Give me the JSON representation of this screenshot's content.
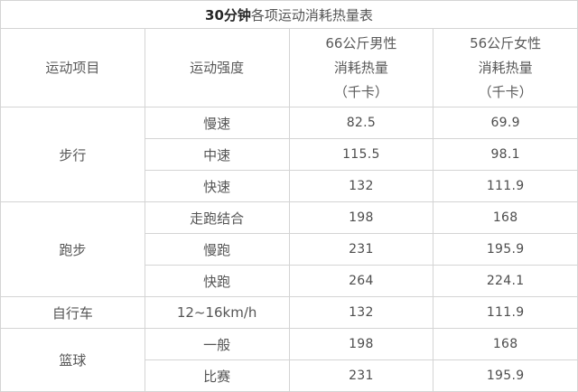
{
  "title": {
    "bold": "30分钟",
    "rest": "各项运动消耗热量表"
  },
  "header": {
    "activity": "运动项目",
    "intensity": "运动强度",
    "male": [
      "66公斤男性",
      "消耗热量",
      "（千卡）"
    ],
    "female": [
      "56公斤女性",
      "消耗热量",
      "（千卡）"
    ]
  },
  "groups": [
    {
      "activity": "步行",
      "rows": [
        {
          "intensity": "慢速",
          "male": "82.5",
          "female": "69.9"
        },
        {
          "intensity": "中速",
          "male": "115.5",
          "female": "98.1"
        },
        {
          "intensity": "快速",
          "male": "132",
          "female": "111.9"
        }
      ]
    },
    {
      "activity": "跑步",
      "rows": [
        {
          "intensity": "走跑结合",
          "male": "198",
          "female": "168"
        },
        {
          "intensity": "慢跑",
          "male": "231",
          "female": "195.9"
        },
        {
          "intensity": "快跑",
          "male": "264",
          "female": "224.1"
        }
      ]
    },
    {
      "activity": "自行车",
      "rows": [
        {
          "intensity": "12~16km/h",
          "male": "132",
          "female": "111.9"
        }
      ]
    },
    {
      "activity": "篮球",
      "rows": [
        {
          "intensity": "一般",
          "male": "198",
          "female": "168"
        },
        {
          "intensity": "比赛",
          "male": "231",
          "female": "195.9"
        }
      ]
    }
  ],
  "colors": {
    "border": "#d4d4d4",
    "text": "#555555",
    "number_text": "#4d4d4d",
    "title_bold": "#262626",
    "background": "#ffffff"
  },
  "chart_data": {
    "type": "table",
    "title": "30分钟各项运动消耗热量表",
    "columns": [
      "运动项目",
      "运动强度",
      "66公斤男性消耗热量（千卡）",
      "56公斤女性消耗热量（千卡）"
    ],
    "rows": [
      [
        "步行",
        "慢速",
        82.5,
        69.9
      ],
      [
        "步行",
        "中速",
        115.5,
        98.1
      ],
      [
        "步行",
        "快速",
        132,
        111.9
      ],
      [
        "跑步",
        "走跑结合",
        198,
        168
      ],
      [
        "跑步",
        "慢跑",
        231,
        195.9
      ],
      [
        "跑步",
        "快跑",
        264,
        224.1
      ],
      [
        "自行车",
        "12~16km/h",
        132,
        111.9
      ],
      [
        "篮球",
        "一般",
        198,
        168
      ],
      [
        "篮球",
        "比赛",
        231,
        195.9
      ]
    ]
  }
}
